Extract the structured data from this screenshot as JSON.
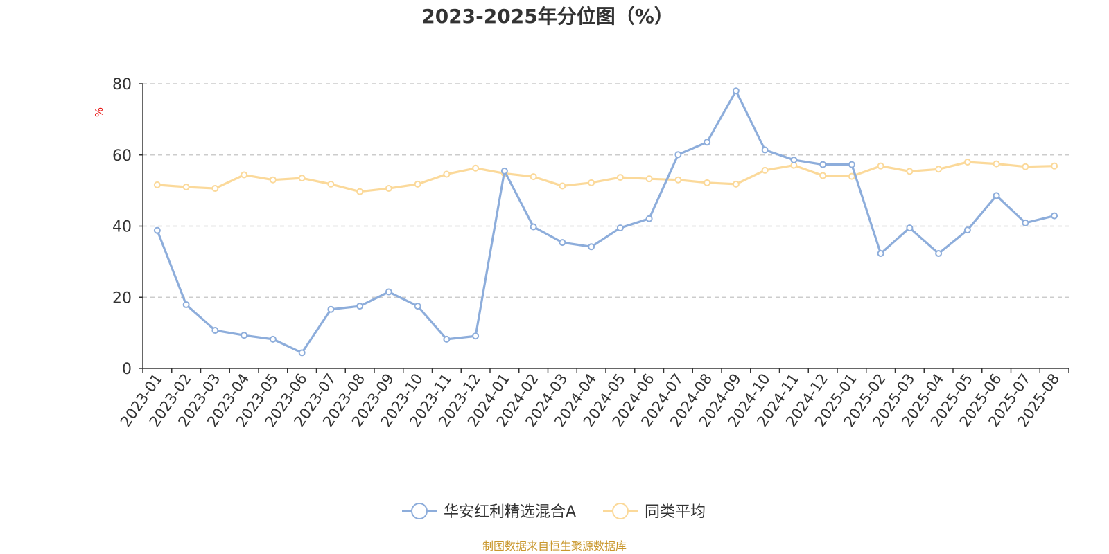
{
  "chart_data": {
    "type": "line",
    "title": "2023-2025年分位图（%）",
    "ylabel": "%",
    "ylim": [
      0,
      80
    ],
    "yticks": [
      0,
      20,
      40,
      60,
      80
    ],
    "grid": true,
    "legend_position": "bottom-center",
    "categories": [
      "2023-01",
      "2023-02",
      "2023-03",
      "2023-04",
      "2023-05",
      "2023-06",
      "2023-07",
      "2023-08",
      "2023-09",
      "2023-10",
      "2023-11",
      "2023-12",
      "2024-01",
      "2024-02",
      "2024-03",
      "2024-04",
      "2024-05",
      "2024-06",
      "2024-07",
      "2024-08",
      "2024-09",
      "2024-10",
      "2024-11",
      "2024-12",
      "2025-01",
      "2025-02",
      "2025-03",
      "2025-04",
      "2025-05",
      "2025-06",
      "2025-07",
      "2025-08"
    ],
    "series": [
      {
        "name": "华安红利精选混合A",
        "color": "#8daddb",
        "values": [
          38.8,
          17.9,
          10.7,
          9.3,
          8.2,
          4.4,
          16.6,
          17.5,
          21.5,
          17.5,
          8.2,
          9.1,
          55.5,
          39.8,
          35.4,
          34.2,
          39.5,
          42.1,
          60.1,
          63.6,
          78.0,
          61.4,
          58.6,
          57.3,
          57.3,
          32.3,
          39.5,
          32.3,
          38.9,
          48.6,
          40.9,
          42.9
        ]
      },
      {
        "name": "同类平均",
        "color": "#fbd99a",
        "values": [
          51.6,
          51.0,
          50.6,
          54.4,
          53.0,
          53.5,
          51.8,
          49.7,
          50.6,
          51.8,
          54.6,
          56.3,
          54.8,
          53.9,
          51.3,
          52.2,
          53.7,
          53.3,
          53.0,
          52.2,
          51.8,
          55.7,
          57.1,
          54.2,
          54.0,
          56.9,
          55.4,
          56.0,
          58.0,
          57.5,
          56.7,
          56.9
        ]
      }
    ]
  },
  "source_note": "制图数据来自恒生聚源数据库",
  "colors": {
    "axis": "#333333",
    "grid": "#cccccc",
    "unit_label": "#e8110f",
    "source_note": "#c9972c"
  }
}
